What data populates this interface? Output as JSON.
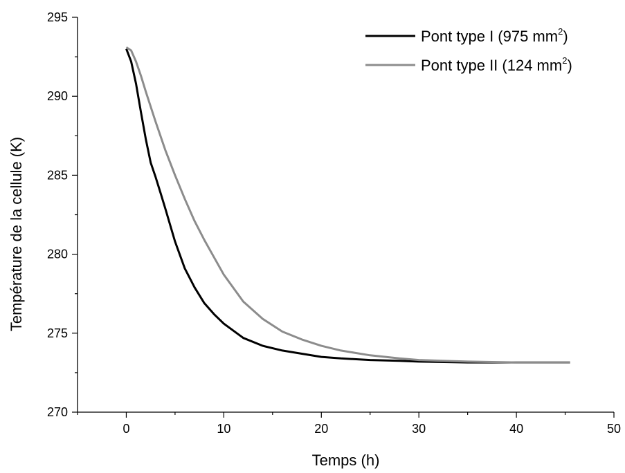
{
  "chart_data": {
    "type": "line",
    "title": "",
    "xlabel": "Temps (h)",
    "ylabel": "Température de la cellule (K)",
    "xlim": [
      -5,
      50
    ],
    "ylim": [
      270,
      295
    ],
    "xticks": [
      0,
      10,
      20,
      30,
      40,
      50
    ],
    "yticks": [
      270,
      275,
      280,
      285,
      290,
      295
    ],
    "grid": false,
    "legend_position": "top-right",
    "series": [
      {
        "name": "Pont type I (975 mm",
        "name_sup": "2",
        "name_suffix": ")",
        "color": "#000000",
        "x": [
          0,
          0.5,
          1,
          1.5,
          2,
          2.5,
          3,
          3.5,
          4,
          5,
          6,
          7,
          8,
          9,
          10,
          12,
          14,
          16,
          18,
          20,
          22,
          25,
          28,
          30,
          35,
          40,
          45.5
        ],
        "y": [
          293.0,
          292.2,
          290.8,
          289.0,
          287.3,
          285.8,
          284.9,
          283.9,
          282.9,
          280.8,
          279.1,
          277.9,
          276.9,
          276.2,
          275.6,
          274.7,
          274.2,
          273.9,
          273.7,
          273.5,
          273.4,
          273.3,
          273.25,
          273.2,
          273.15,
          273.15,
          273.15
        ]
      },
      {
        "name": "Pont type II (124 mm",
        "name_sup": "2",
        "name_suffix": ")",
        "color": "#8c8c8c",
        "x": [
          0,
          0.5,
          1,
          1.5,
          2,
          3,
          4,
          5,
          6,
          7,
          8,
          9,
          10,
          12,
          14,
          16,
          18,
          20,
          22,
          25,
          28,
          30,
          35,
          40,
          45.5
        ],
        "y": [
          293.1,
          292.9,
          292.2,
          291.3,
          290.3,
          288.4,
          286.6,
          285.0,
          283.5,
          282.1,
          280.9,
          279.8,
          278.7,
          277.0,
          275.9,
          275.1,
          274.6,
          274.2,
          273.9,
          273.6,
          273.4,
          273.3,
          273.2,
          273.15,
          273.15
        ]
      }
    ]
  }
}
